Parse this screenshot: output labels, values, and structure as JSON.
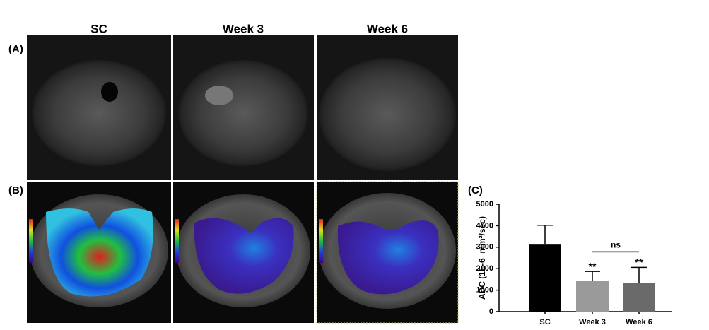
{
  "figure": {
    "panel_labels": [
      "(A)",
      "(B)",
      "(C)"
    ],
    "column_titles": [
      "SC",
      "Week 3",
      "Week 6"
    ]
  },
  "chart_data": {
    "type": "bar",
    "ylabel": "ADC (1E-6_mm²/sec)",
    "categories": [
      "SC",
      "Week 3",
      "Week 6"
    ],
    "values": [
      3120,
      1420,
      1320
    ],
    "errors": [
      900,
      450,
      740
    ],
    "colors": [
      "#000000",
      "#9a9a9a",
      "#6a6a6a"
    ],
    "ylim": [
      0,
      5000
    ],
    "yticks": [
      0,
      1000,
      2000,
      3000,
      4000,
      5000
    ],
    "annotations": [
      "**",
      "**",
      "ns"
    ]
  }
}
